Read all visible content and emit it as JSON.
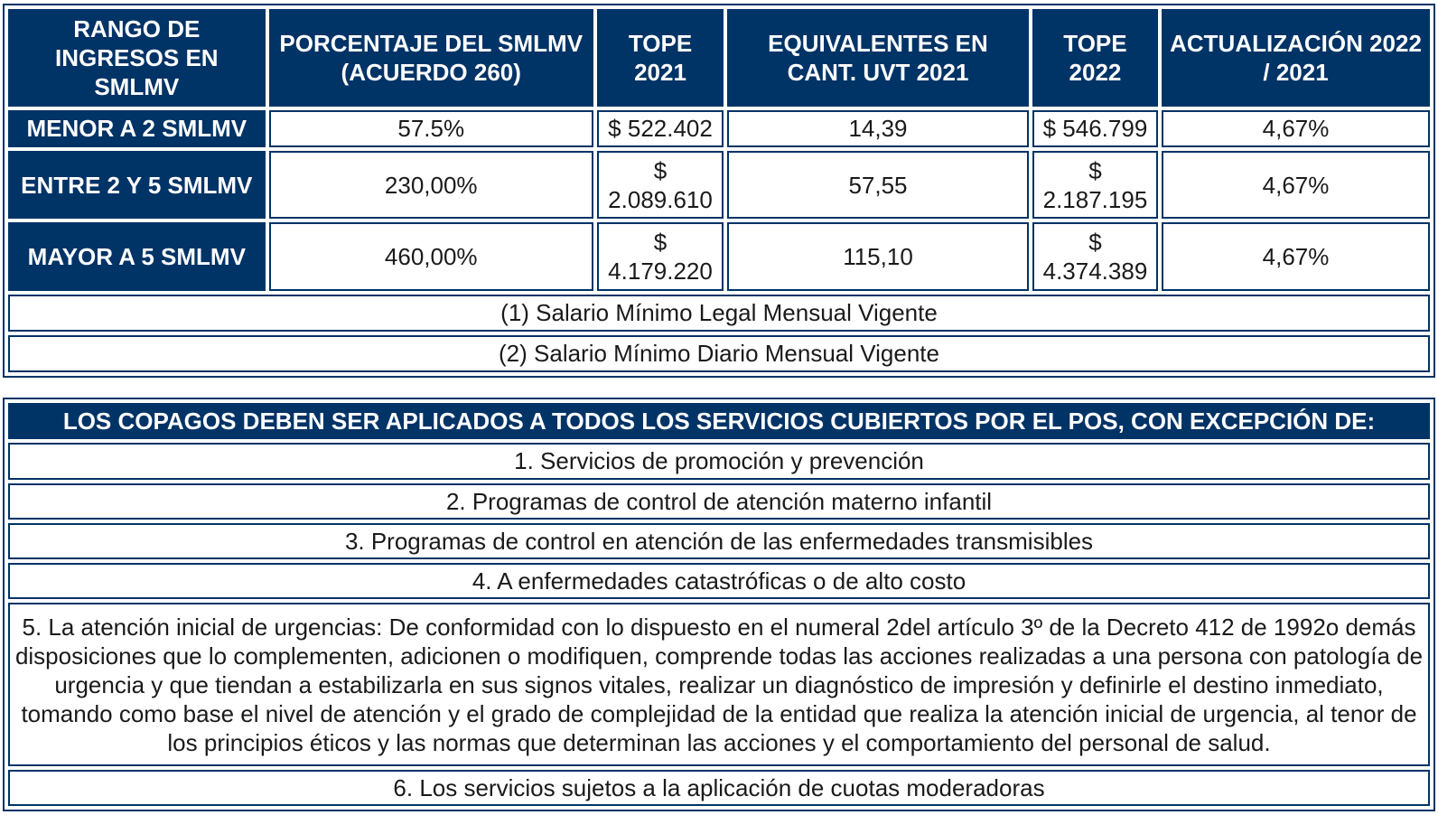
{
  "copay_table": {
    "headers": [
      "RANGO DE INGRESOS EN SMLMV",
      "PORCENTAJE DEL SMLMV (ACUERDO 260)",
      "TOPE 2021",
      "EQUIVALENTES EN CANT. UVT 2021",
      "TOPE 2022",
      "ACTUALIZACIÓN 2022 / 2021"
    ],
    "rows": [
      {
        "range": "MENOR A 2 SMLMV",
        "percent": "57.5%",
        "cap_2021": "$ 522.402",
        "uvt_2021": "14,39",
        "cap_2022": "$ 546.799",
        "update": "4,67%"
      },
      {
        "range": "ENTRE 2 Y 5 SMLMV",
        "percent": "230,00%",
        "cap_2021": "$ 2.089.610",
        "uvt_2021": "57,55",
        "cap_2022": "$ 2.187.195",
        "update": "4,67%"
      },
      {
        "range": "MAYOR A 5 SMLMV",
        "percent": "460,00%",
        "cap_2021": "$ 4.179.220",
        "uvt_2021": "115,10",
        "cap_2022": "$ 4.374.389",
        "update": "4,67%"
      }
    ],
    "notes": [
      "(1) Salario Mínimo Legal Mensual Vigente",
      "(2) Salario Mínimo Diario Mensual Vigente"
    ]
  },
  "exceptions_table": {
    "title": "LOS COPAGOS DEBEN SER APLICADOS A TODOS LOS SERVICIOS CUBIERTOS POR EL POS, CON EXCEPCIÓN DE:",
    "items": [
      "1. Servicios de promoción y prevención",
      "2. Programas de control de atención materno infantil",
      "3. Programas de control en atención de las enfermedades transmisibles",
      "4. A enfermedades catastróficas o de alto costo",
      "5. La atención inicial de urgencias: De conformidad con lo dispuesto en el numeral 2del artículo 3º de la Decreto 412 de 1992o demás disposiciones que lo complementen, adicionen o modifiquen, comprende todas las acciones realizadas a una persona con patología de urgencia y que tiendan a estabilizarla en sus signos vitales, realizar un diagnóstico de impresión y definirle el destino inmediato, tomando como base el nivel de atención y el grado de complejidad de la entidad que realiza la atención inicial de urgencia, al tenor de los principios éticos y las normas que determinan las acciones y el comportamiento del personal de salud.",
      "6. Los servicios sujetos a la aplicación de cuotas moderadoras"
    ]
  },
  "colors": {
    "header_bg": "#003366",
    "header_text": "#ffffff",
    "border": "#003366"
  }
}
